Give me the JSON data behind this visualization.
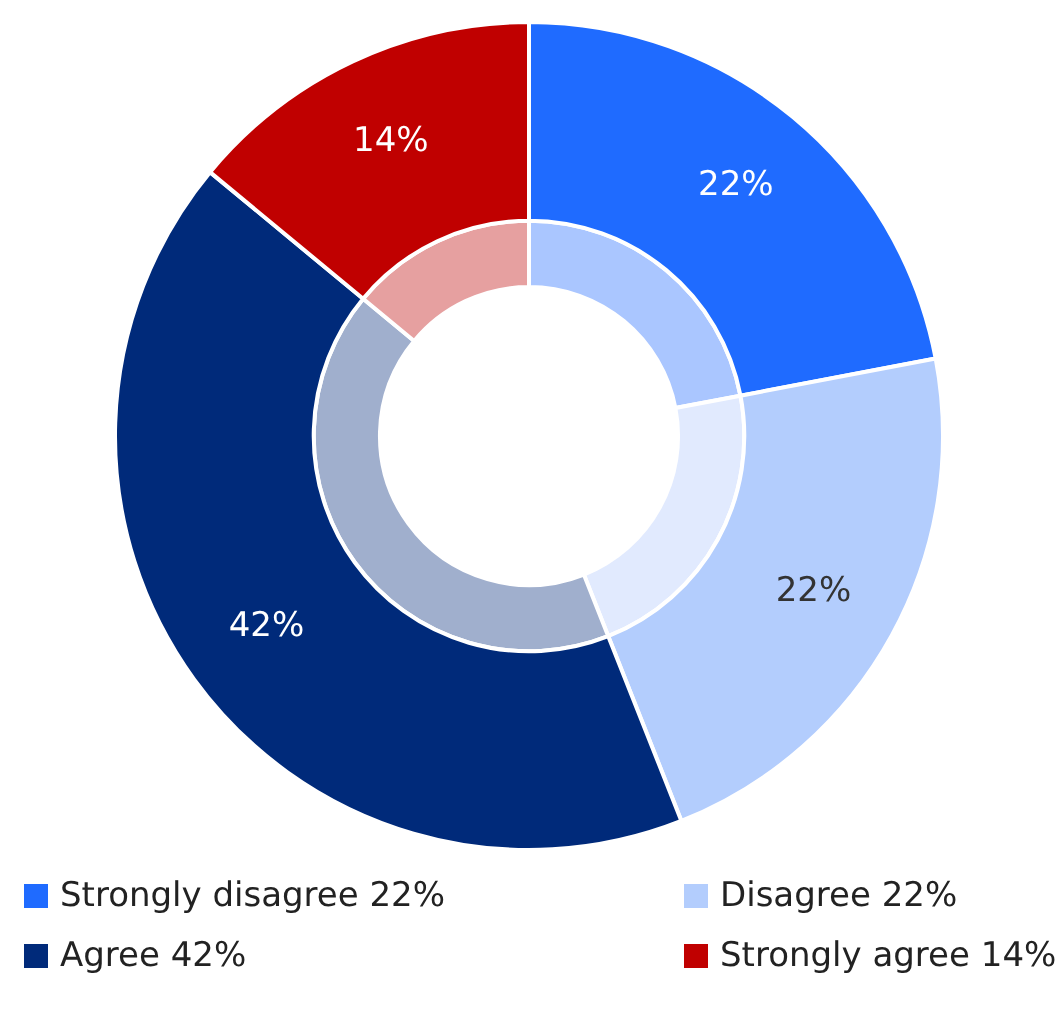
{
  "chart_data": {
    "type": "donut",
    "categories": [
      "Strongly disagree 22%",
      "Disagree 22%",
      "Agree 42%",
      "Strongly agree 14%"
    ],
    "series": [
      {
        "values": [
          22,
          22,
          42,
          14
        ],
        "colors": [
          "#1f6bff",
          "#b3cdfd",
          "#002a7a",
          "#c00000"
        ],
        "value_labels": [
          "22%",
          "22%",
          "42%",
          "14%"
        ]
      },
      {
        "values": [
          22,
          22,
          42,
          14
        ],
        "colors": [
          "#aac6ff",
          "#e1eafe",
          "#a0afcd",
          "#e6a0a0"
        ]
      }
    ],
    "legend": "bottom"
  }
}
